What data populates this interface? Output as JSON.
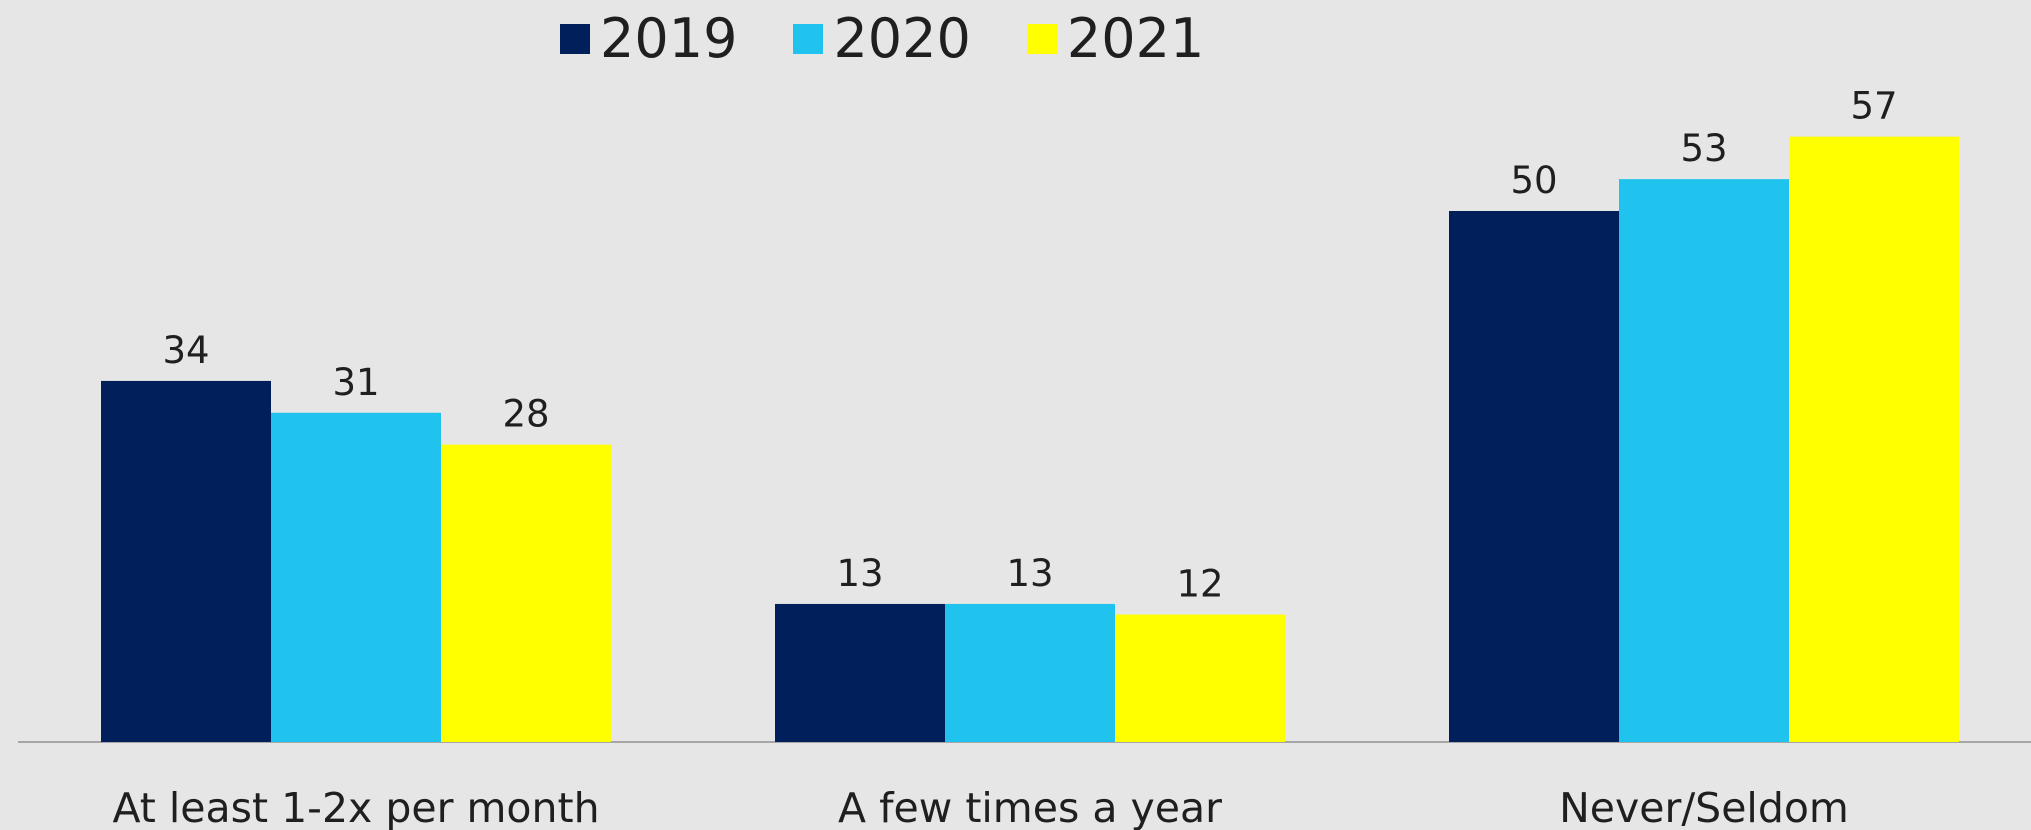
{
  "chart_data": {
    "type": "bar",
    "categories": [
      "At least 1-2x per month",
      "A few times a year",
      "Never/Seldom"
    ],
    "series": [
      {
        "name": "2019",
        "values": [
          34,
          13,
          50
        ],
        "color": "#001f5b"
      },
      {
        "name": "2020",
        "values": [
          31,
          13,
          53
        ],
        "color": "#1fc3ee"
      },
      {
        "name": "2021",
        "values": [
          28,
          12,
          57
        ],
        "color": "#ffff00"
      }
    ],
    "ylim": [
      0,
      62
    ],
    "grid": false,
    "legend_position": "top-center",
    "data_labels": true,
    "colors": {
      "background": "#e6e6e6",
      "axis": "#a6a6a6",
      "text": "#1f1f1f"
    }
  }
}
